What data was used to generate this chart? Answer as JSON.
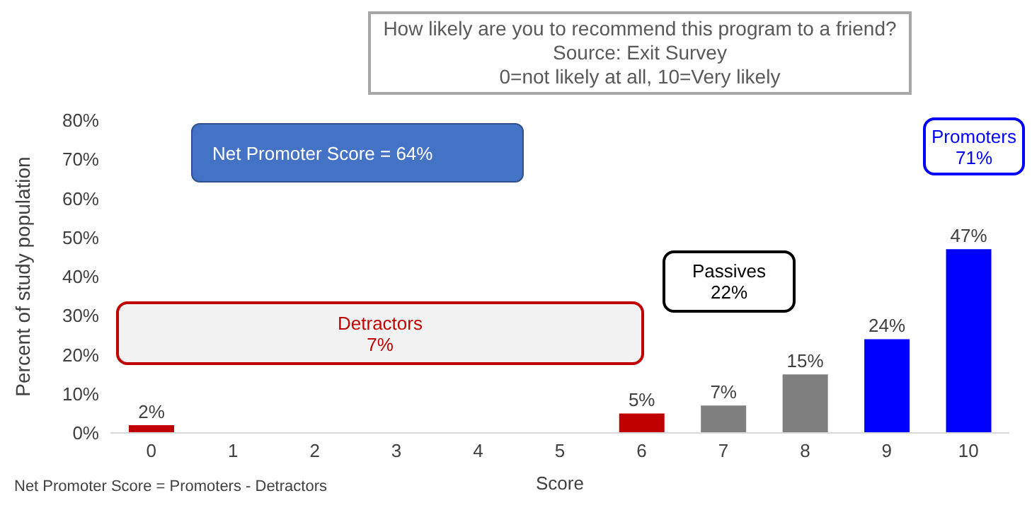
{
  "chart_data": {
    "type": "bar",
    "title": "How likely are you to recommend this program to a friend?",
    "subtitle": "Source: Exit Survey",
    "annotations": [
      "0=not likely at all, 10=Very likely",
      "Net Promoter Score = 64%",
      "Detractors\n7%",
      "Passives\n22%",
      "Promoters\n71%",
      "Net Promoter Score = Promoters - Detractors"
    ],
    "categories": [
      "0",
      "1",
      "2",
      "3",
      "4",
      "5",
      "6",
      "7",
      "8",
      "9",
      "10"
    ],
    "values": [
      2,
      0,
      0,
      0,
      0,
      0,
      5,
      7,
      15,
      24,
      47
    ],
    "colors": [
      "#c00000",
      "#c00000",
      "#c00000",
      "#c00000",
      "#c00000",
      "#c00000",
      "#c00000",
      "#7f7f7f",
      "#7f7f7f",
      "#0000ff",
      "#0000ff"
    ],
    "value_labels": [
      "2%",
      null,
      null,
      null,
      null,
      null,
      "5%",
      "7%",
      "15%",
      "24%",
      "47%"
    ],
    "xlabel": "Score",
    "ylabel": "Percent of study population",
    "ylim": [
      0,
      80
    ],
    "yticks": [
      {
        "value": 0,
        "label": "0%"
      },
      {
        "value": 10,
        "label": "10%"
      },
      {
        "value": 20,
        "label": "20%"
      },
      {
        "value": 30,
        "label": "30%"
      },
      {
        "value": 40,
        "label": "40%"
      },
      {
        "value": 50,
        "label": "50%"
      },
      {
        "value": 60,
        "label": "60%"
      },
      {
        "value": 70,
        "label": "70%"
      },
      {
        "value": 80,
        "label": "80%"
      }
    ]
  }
}
